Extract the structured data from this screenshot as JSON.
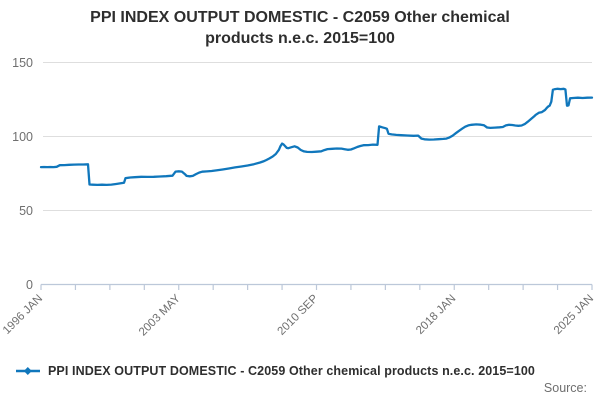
{
  "header": {
    "title": "PPI INDEX OUTPUT DOMESTIC - C2059 Other chemical products n.e.c. 2015=100"
  },
  "legend": {
    "label": "PPI INDEX OUTPUT DOMESTIC - C2059 Other chemical products n.e.c. 2015=100",
    "marker": "line-with-diamond"
  },
  "source": {
    "label": "Source:"
  },
  "colors": {
    "series_line": "#1077bc",
    "gridline": "#dedede",
    "axis_line": "#bcc8d9",
    "tick_text": "#6f6f6f",
    "title_text": "#2e2e2e"
  },
  "chart_data": {
    "type": "line",
    "title": "PPI INDEX OUTPUT DOMESTIC - C2059 Other chemical products n.e.c. 2015=100",
    "xlabel": "",
    "ylabel": "",
    "x_axis_note": "monthly index, Jan 1996 to 2025, month offsets from Jan 1996",
    "x_domain_months": [
      0,
      352
    ],
    "x_tick_labels": [
      "1996 JAN",
      "2003 MAY",
      "2010 SEP",
      "2018 JAN",
      "2025 JAN"
    ],
    "x_labeled_tick_indexes": [
      0,
      4,
      8,
      12,
      16
    ],
    "x_minor_tick_count": 17,
    "y_ticks": [
      0,
      50,
      100,
      150
    ],
    "ylim": [
      0,
      155
    ],
    "grid": true,
    "legend_position": "bottom",
    "series": [
      {
        "name": "PPI INDEX OUTPUT DOMESTIC - C2059 Other chemical products n.e.c. 2015=100",
        "points": [
          [
            0,
            79.3
          ],
          [
            2,
            79.4
          ],
          [
            4,
            79.3
          ],
          [
            6,
            79.4
          ],
          [
            8,
            79.3
          ],
          [
            10,
            79.5
          ],
          [
            12,
            80.6
          ],
          [
            15,
            80.7
          ],
          [
            18,
            80.9
          ],
          [
            21,
            81
          ],
          [
            24,
            81.1
          ],
          [
            27,
            81.1
          ],
          [
            30,
            81.2
          ],
          [
            31,
            67.6
          ],
          [
            33,
            67.4
          ],
          [
            36,
            67.3
          ],
          [
            39,
            67.4
          ],
          [
            42,
            67.3
          ],
          [
            45,
            67.5
          ],
          [
            48,
            67.9
          ],
          [
            51,
            68.4
          ],
          [
            53,
            68.7
          ],
          [
            54,
            71.9
          ],
          [
            57,
            72.3
          ],
          [
            60,
            72.5
          ],
          [
            64,
            72.8
          ],
          [
            68,
            72.7
          ],
          [
            72,
            72.8
          ],
          [
            76,
            73
          ],
          [
            80,
            73.2
          ],
          [
            84,
            73.5
          ],
          [
            86,
            76.3
          ],
          [
            88,
            76.5
          ],
          [
            90,
            76.3
          ],
          [
            92,
            74.5
          ],
          [
            93,
            73.4
          ],
          [
            95,
            73.1
          ],
          [
            97,
            73.4
          ],
          [
            99,
            74.6
          ],
          [
            101,
            75.6
          ],
          [
            103,
            76.2
          ],
          [
            106,
            76.4
          ],
          [
            109,
            76.7
          ],
          [
            112,
            77.1
          ],
          [
            116,
            77.7
          ],
          [
            120,
            78.4
          ],
          [
            124,
            79.1
          ],
          [
            128,
            79.7
          ],
          [
            132,
            80.4
          ],
          [
            136,
            81.3
          ],
          [
            140,
            82.4
          ],
          [
            142,
            83.2
          ],
          [
            144,
            84.1
          ],
          [
            146,
            85.2
          ],
          [
            148,
            86.5
          ],
          [
            150,
            88.2
          ],
          [
            152,
            91
          ],
          [
            153,
            93.5
          ],
          [
            154,
            95.2
          ],
          [
            155,
            94.6
          ],
          [
            157,
            92.3
          ],
          [
            158,
            92.1
          ],
          [
            160,
            92.8
          ],
          [
            162,
            93.4
          ],
          [
            164,
            92.6
          ],
          [
            166,
            90.9
          ],
          [
            168,
            89.9
          ],
          [
            170,
            89.6
          ],
          [
            173,
            89.5
          ],
          [
            176,
            89.7
          ],
          [
            179,
            90
          ],
          [
            181,
            90.8
          ],
          [
            183,
            91.5
          ],
          [
            186,
            91.7
          ],
          [
            189,
            91.9
          ],
          [
            192,
            91.8
          ],
          [
            194,
            91.4
          ],
          [
            196,
            91
          ],
          [
            198,
            91.2
          ],
          [
            200,
            92
          ],
          [
            202,
            92.9
          ],
          [
            204,
            93.6
          ],
          [
            206,
            94.1
          ],
          [
            209,
            94.2
          ],
          [
            212,
            94.5
          ],
          [
            215,
            94.4
          ],
          [
            216,
            106.8
          ],
          [
            218,
            106.2
          ],
          [
            220,
            105.6
          ],
          [
            221,
            105.2
          ],
          [
            222,
            101.9
          ],
          [
            224,
            101.4
          ],
          [
            227,
            101.1
          ],
          [
            230,
            100.9
          ],
          [
            234,
            100.7
          ],
          [
            238,
            100.5
          ],
          [
            241,
            100.6
          ],
          [
            243,
            98.6
          ],
          [
            245,
            98.1
          ],
          [
            248,
            97.9
          ],
          [
            251,
            98
          ],
          [
            254,
            98.2
          ],
          [
            257,
            98.4
          ],
          [
            259,
            98.6
          ],
          [
            261,
            99.4
          ],
          [
            263,
            100.6
          ],
          [
            265,
            102.2
          ],
          [
            267,
            103.8
          ],
          [
            269,
            105.3
          ],
          [
            271,
            106.6
          ],
          [
            273,
            107.5
          ],
          [
            275,
            107.9
          ],
          [
            278,
            108.2
          ],
          [
            281,
            108
          ],
          [
            283,
            107.6
          ],
          [
            285,
            106.1
          ],
          [
            287,
            105.8
          ],
          [
            290,
            106
          ],
          [
            293,
            106.2
          ],
          [
            295,
            106.4
          ],
          [
            297,
            107.5
          ],
          [
            299,
            107.9
          ],
          [
            301,
            107.8
          ],
          [
            303,
            107.4
          ],
          [
            305,
            107.2
          ],
          [
            307,
            107.4
          ],
          [
            309,
            108.4
          ],
          [
            311,
            110
          ],
          [
            313,
            111.8
          ],
          [
            315,
            113.6
          ],
          [
            316,
            114.6
          ],
          [
            318,
            116
          ],
          [
            320,
            116.5
          ],
          [
            322,
            117.9
          ],
          [
            323,
            119.2
          ],
          [
            324,
            120.3
          ],
          [
            325,
            120.9
          ],
          [
            326,
            123.5
          ],
          [
            327,
            131.6
          ],
          [
            328,
            131.9
          ],
          [
            330,
            132.2
          ],
          [
            332,
            132
          ],
          [
            334,
            132.2
          ],
          [
            335,
            131.8
          ],
          [
            336,
            120.8
          ],
          [
            337,
            121
          ],
          [
            338,
            125.8
          ],
          [
            340,
            126
          ],
          [
            343,
            126.2
          ],
          [
            346,
            126
          ],
          [
            349,
            126.2
          ],
          [
            352,
            126.3
          ]
        ]
      }
    ]
  }
}
